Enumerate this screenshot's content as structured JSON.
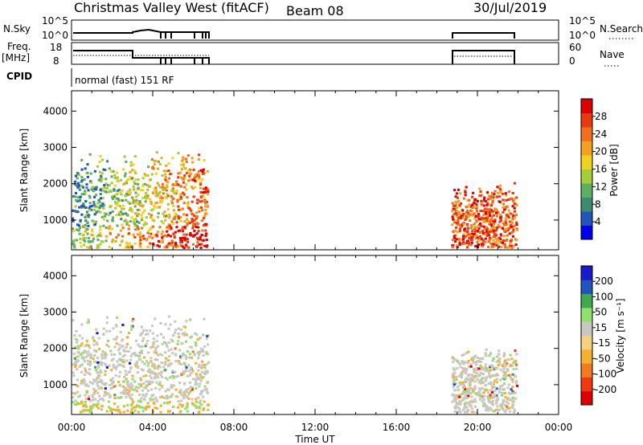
{
  "header": {
    "station": "Christmas Valley West (fitACF)",
    "beam": "Beam 08",
    "date": "30/Jul/2019"
  },
  "top_panels": {
    "nsky_label": "N.Sky",
    "nsky_ticks": [
      "10^5",
      "10^0"
    ],
    "nsky_right_ticks": [
      "10^5",
      "10^0"
    ],
    "nsearch_label": "N.Search",
    "freq_label": "Freq.",
    "freq_unit": "[MHz]",
    "freq_ticks": [
      "18",
      "8"
    ],
    "nave_ticks": [
      "60",
      "0"
    ],
    "nave_label": "Nave",
    "cpid_label": "CPID",
    "cpid_value": "normal (fast) 151 RF"
  },
  "chart_data": [
    {
      "type": "heatmap",
      "title": "",
      "xlabel": "",
      "ylabel": "Slant Range [km]",
      "x_ticks": [
        "00:00",
        "04:00",
        "08:00",
        "12:00",
        "16:00",
        "20:00",
        "00:00"
      ],
      "xlim_hours": [
        0,
        24
      ],
      "ylim_km": [
        180,
        4560
      ],
      "y_ticks": [
        1000,
        2000,
        3000,
        4000
      ],
      "colorbar": {
        "label": "Power [dB]",
        "ticks": [
          "28",
          "24",
          "20",
          "16",
          "12",
          "8",
          "4"
        ],
        "colors": [
          "#0000ee",
          "#2255bb",
          "#3d8a6e",
          "#5bb065",
          "#a7cc3a",
          "#f0d020",
          "#f5a020",
          "#f07020",
          "#e83a10",
          "#dd0000"
        ]
      },
      "echo_regions": [
        {
          "t_start": 0.0,
          "t_end": 6.7,
          "r_start": 200,
          "r_end": 2900,
          "dominant": "mixed green-red"
        },
        {
          "t_start": 18.7,
          "t_end": 21.9,
          "r_start": 200,
          "r_end": 2000,
          "dominant": "red"
        }
      ]
    },
    {
      "type": "heatmap",
      "title": "",
      "xlabel": "Time UT",
      "ylabel": "Slant Range [km]",
      "x_ticks": [
        "00:00",
        "04:00",
        "08:00",
        "12:00",
        "16:00",
        "20:00",
        "00:00"
      ],
      "xlim_hours": [
        0,
        24
      ],
      "ylim_km": [
        180,
        4560
      ],
      "y_ticks": [
        1000,
        2000,
        3000,
        4000
      ],
      "colorbar": {
        "label": "Velocity [m s⁻¹]",
        "ticks": [
          "200",
          "100",
          "50",
          "15",
          "-15",
          "-50",
          "-100",
          "-200"
        ],
        "colors": [
          "#dd0000",
          "#ee3a10",
          "#f07a20",
          "#f5b030",
          "#f5d080",
          "#c8c8c0",
          "#90e070",
          "#3daa50",
          "#2255bb",
          "#1a1acc"
        ]
      },
      "echo_regions": [
        {
          "t_start": 0.0,
          "t_end": 6.7,
          "r_start": 200,
          "r_end": 2900,
          "dominant": "grey"
        },
        {
          "t_start": 18.7,
          "t_end": 21.9,
          "r_start": 200,
          "r_end": 2000,
          "dominant": "grey"
        }
      ]
    }
  ]
}
